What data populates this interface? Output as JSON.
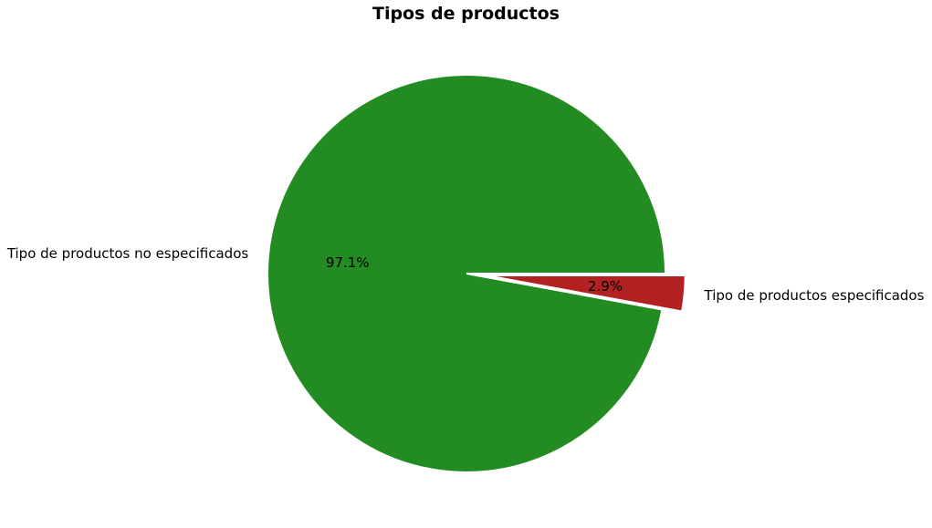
{
  "chart_data": {
    "type": "pie",
    "title": "Tipos de productos",
    "slices": [
      {
        "label": "Tipo de productos no especificados",
        "value": 97.1,
        "pct_label": "97.1%",
        "color": "#228B22",
        "explode": false
      },
      {
        "label": "Tipo de productos especificados",
        "value": 2.9,
        "pct_label": "2.9%",
        "color": "#B22222",
        "explode": true
      }
    ]
  }
}
